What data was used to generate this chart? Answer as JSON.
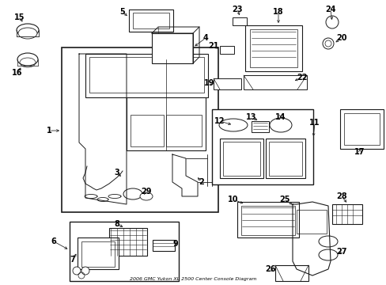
{
  "title": "2006 GMC Yukon XL 2500 Center Console Diagram",
  "bg_color": "#ffffff",
  "lc": "#1a1a1a",
  "figw": 4.89,
  "figh": 3.6,
  "dpi": 100
}
